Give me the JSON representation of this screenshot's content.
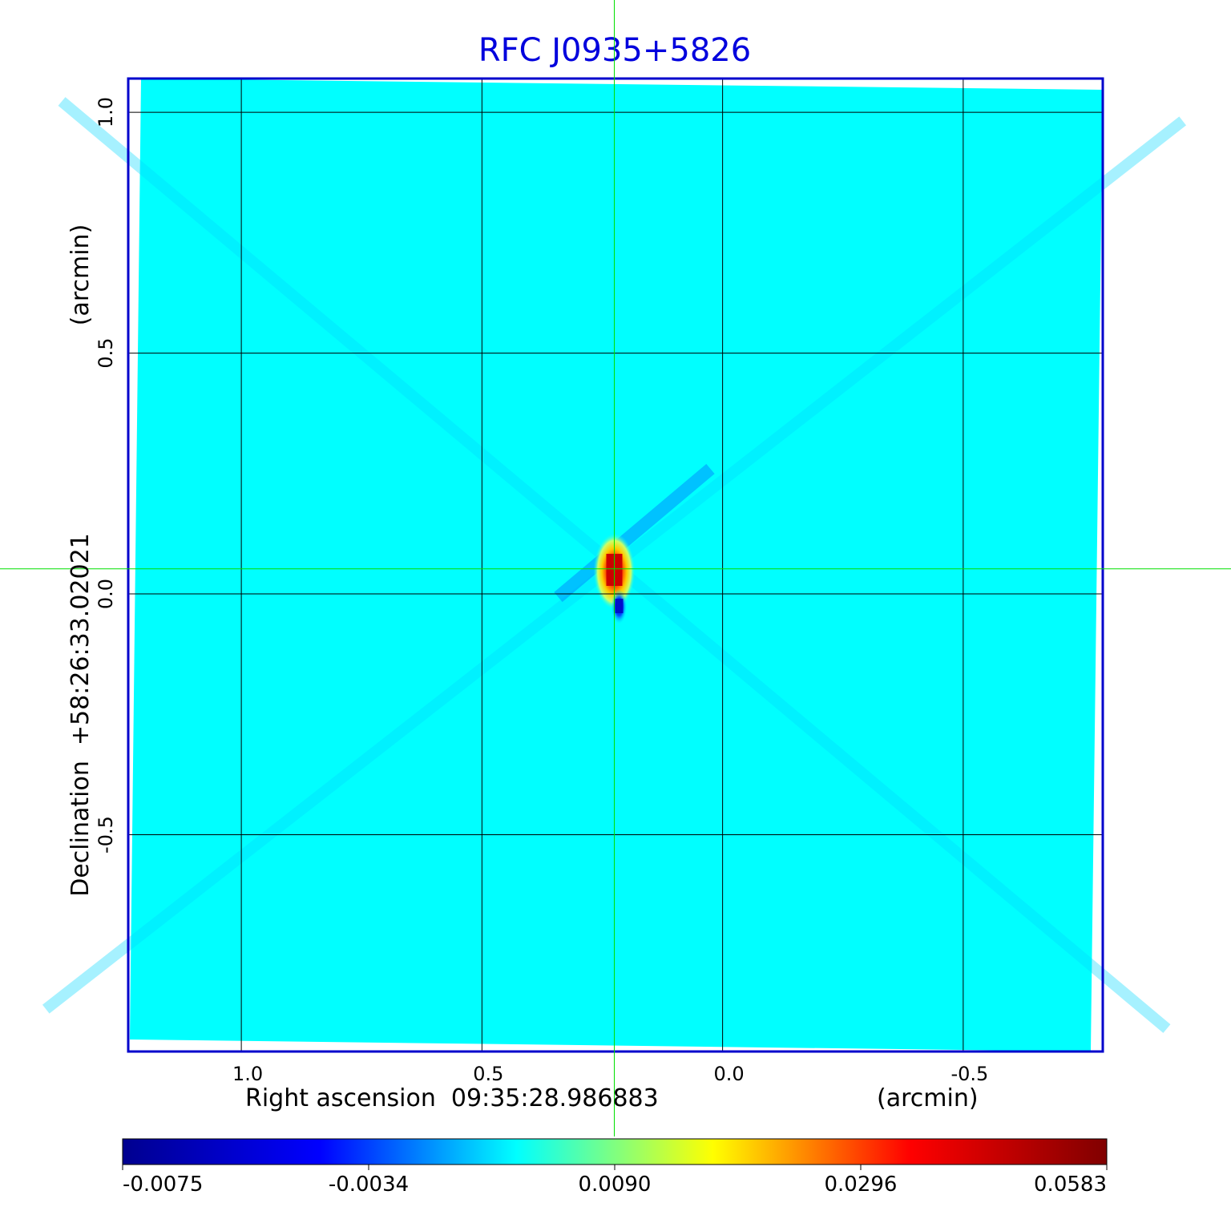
{
  "chart_data": {
    "type": "heatmap",
    "title": "RFC J0935+5826",
    "xlabel": "Right ascension  09:35:28.986883",
    "xunit": "(arcmin)",
    "ylabel": "Declination  +58:26:33.02021",
    "yunit": "(arcmin)",
    "x_ticks": [
      "1.0",
      "0.5",
      "0.0",
      "-0.5"
    ],
    "x_tick_values": [
      1.0,
      0.5,
      0.0,
      -0.5
    ],
    "y_ticks": [
      "1.0",
      "0.5",
      "0.0",
      "-0.5"
    ],
    "y_tick_values": [
      1.0,
      0.5,
      0.0,
      -0.5
    ],
    "xlim": [
      1.235,
      -0.79
    ],
    "ylim": [
      -0.95,
      1.07
    ],
    "grid": true,
    "crosshair": {
      "x": 0.225,
      "y": 0.052,
      "color": "#00e000"
    },
    "colorbar": {
      "ticks": [
        "-0.0075",
        "-0.0034",
        "0.0090",
        "0.0296",
        "0.0583"
      ],
      "tick_fractions": [
        0.0,
        0.25,
        0.5,
        0.75,
        1.0
      ],
      "colormap": [
        "#00008f",
        "#0000ff",
        "#00ffff",
        "#ffff00",
        "#ff0000",
        "#800000"
      ]
    },
    "source": {
      "peak_x": 0.225,
      "peak_y": 0.06,
      "peak_value": 0.0583,
      "min_x": 0.215,
      "min_y": -0.02,
      "min_value": -0.0075,
      "background_value": 0.0
    },
    "colors": {
      "frame": "#0000cc",
      "grid": "#000000",
      "background": "#00ffff"
    }
  }
}
